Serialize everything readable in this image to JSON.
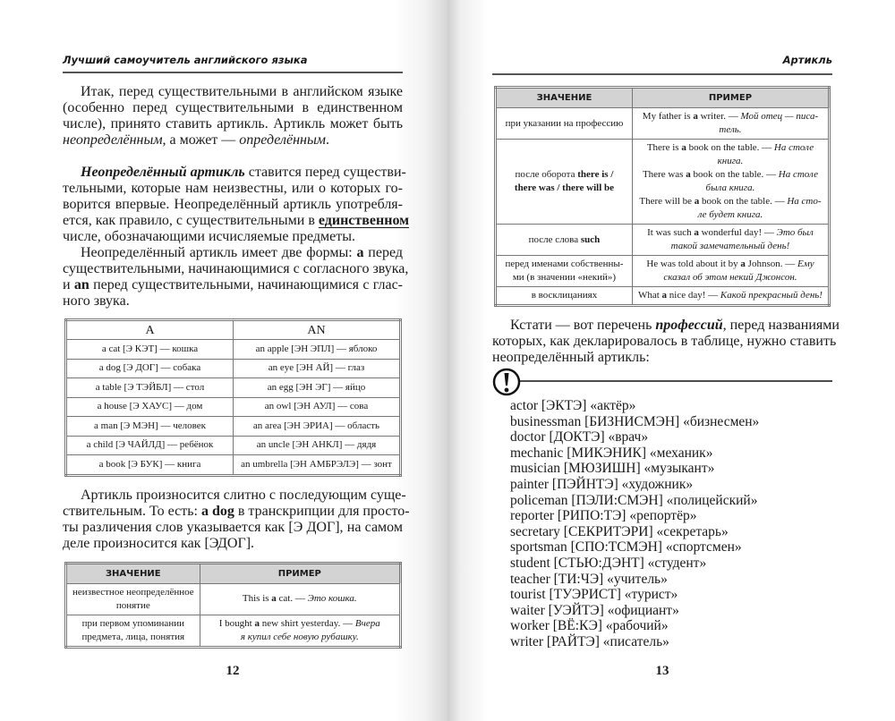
{
  "left": {
    "running_head": "Лучший самоучитель английского языка",
    "intro": [
      {
        "indent": true,
        "segs": [
          {
            "t": "Итак, перед существительными в английском языке"
          }
        ]
      },
      {
        "segs": [
          {
            "t": "(особенно перед существительными в единственном"
          }
        ]
      },
      {
        "segs": [
          {
            "t": "числе), принято ставить артикль. Артикль может быть"
          }
        ]
      },
      {
        "last": true,
        "segs": [
          {
            "t": "неопределённым",
            "f": "i"
          },
          {
            "t": ", а может — "
          },
          {
            "t": "определённым",
            "f": "i"
          },
          {
            "t": "."
          }
        ]
      },
      {
        "last": true,
        "segs": [
          {
            "t": ""
          }
        ]
      },
      {
        "indent": true,
        "segs": [
          {
            "t": "Неопределённый артикль",
            "f": "b i"
          },
          {
            "t": " ставится перед существи-"
          }
        ]
      },
      {
        "segs": [
          {
            "t": "тельными, которые нам неизвестны, или о которых го-"
          }
        ]
      },
      {
        "segs": [
          {
            "t": "ворится впервые. Неопределённый артикль употребля-"
          }
        ]
      },
      {
        "segs": [
          {
            "t": "ется, как правило, с существительными в "
          },
          {
            "t": "единственном",
            "f": "b u"
          }
        ]
      },
      {
        "last": true,
        "segs": [
          {
            "t": "числе, обозначающими исчисляемые предметы."
          }
        ]
      },
      {
        "indent": true,
        "segs": [
          {
            "t": "Неопределённый артикль имеет две формы: "
          },
          {
            "t": "a",
            "f": "b"
          },
          {
            "t": " перед"
          }
        ]
      },
      {
        "segs": [
          {
            "t": "существительными, начинающимися с согласного звука,"
          }
        ]
      },
      {
        "segs": [
          {
            "t": "и "
          },
          {
            "t": "an",
            "f": "b"
          },
          {
            "t": " перед существительными, начинающимися с глас-"
          }
        ]
      },
      {
        "last": true,
        "segs": [
          {
            "t": "ного звука."
          }
        ]
      }
    ],
    "forms_table": {
      "headers": [
        "A",
        "AN"
      ],
      "rows": [
        [
          "a cat [Э КЭТ] — кошка",
          "an apple [ЭН ЭПЛ] — яблоко"
        ],
        [
          "a dog [Э ДОГ] — собака",
          "an eye [ЭН АЙ] — глаз"
        ],
        [
          "a table [Э ТЭЙБЛ] — стол",
          "an egg [ЭН ЭГ] — яйцо"
        ],
        [
          "a house [Э ХАУС] — дом",
          "an owl [ЭН АУЛ] — сова"
        ],
        [
          "a man [Э МЭН] — человек",
          "an area [ЭН ЭРИА] — область"
        ],
        [
          "a child [Э ЧАЙЛД] — ребёнок",
          "an uncle [ЭН АНКЛ] — дядя"
        ],
        [
          "a book [Э БУК] — книга",
          "an umbrella [ЭН АМБРЭЛЭ] — зонт"
        ]
      ]
    },
    "pronounce": [
      {
        "indent": true,
        "segs": [
          {
            "t": "Артикль произносится слитно с последующим суще-"
          }
        ]
      },
      {
        "segs": [
          {
            "t": "ствительным. То есть: "
          },
          {
            "t": "a dog",
            "f": "b"
          },
          {
            "t": " в транскрипции для просто-"
          }
        ]
      },
      {
        "segs": [
          {
            "t": "ты различения слов указывается как [Э ДОГ], на самом"
          }
        ]
      },
      {
        "last": true,
        "segs": [
          {
            "t": "деле произносится как [ЭДОГ]."
          }
        ]
      }
    ],
    "meaning_table": {
      "headers": [
        "ЗНАЧЕНИЕ",
        "ПРИМЕР"
      ],
      "rows": [
        [
          [
            [
              {
                "t": "неизвестное неопределённое"
              }
            ],
            [
              {
                "t": "понятие"
              }
            ]
          ],
          [
            [
              {
                "t": "This is "
              },
              {
                "t": "a",
                "f": "b"
              },
              {
                "t": " cat. — "
              },
              {
                "t": "Это кошка.",
                "f": "i"
              }
            ]
          ]
        ],
        [
          [
            [
              {
                "t": "при первом упоминании"
              }
            ],
            [
              {
                "t": "предмета, лица, понятия"
              }
            ]
          ],
          [
            [
              {
                "t": "I bought "
              },
              {
                "t": "a",
                "f": "b"
              },
              {
                "t": " new shirt yesterday. — "
              },
              {
                "t": "Вчера",
                "f": "i"
              }
            ],
            [
              {
                "t": "я купил себе новую рубашку.",
                "f": "i"
              }
            ]
          ]
        ]
      ]
    },
    "page_number": "12"
  },
  "right": {
    "running_head": "Артикль",
    "meaning_table": {
      "headers": [
        "ЗНАЧЕНИЕ",
        "ПРИМЕР"
      ],
      "rows": [
        [
          [
            [
              {
                "t": "при указании на профессию"
              }
            ]
          ],
          [
            [
              {
                "t": "My father is "
              },
              {
                "t": "a",
                "f": "b"
              },
              {
                "t": " writer. — "
              },
              {
                "t": "Мой отец — писа-",
                "f": "i"
              }
            ],
            [
              {
                "t": "тель.",
                "f": "i"
              }
            ]
          ]
        ],
        [
          [
            [
              {
                "t": "после оборота "
              },
              {
                "t": "there is /",
                "f": "b"
              }
            ],
            [
              {
                "t": "there was / there will be",
                "f": "b"
              }
            ]
          ],
          [
            [
              {
                "t": "There is "
              },
              {
                "t": "a",
                "f": "b"
              },
              {
                "t": " book on the table. — "
              },
              {
                "t": "На столе",
                "f": "i"
              }
            ],
            [
              {
                "t": "книга.",
                "f": "i"
              }
            ],
            [
              {
                "t": "There was "
              },
              {
                "t": "a",
                "f": "b"
              },
              {
                "t": " book on the table. — "
              },
              {
                "t": "На столе",
                "f": "i"
              }
            ],
            [
              {
                "t": "была книга.",
                "f": "i"
              }
            ],
            [
              {
                "t": "There will be "
              },
              {
                "t": "a",
                "f": "b"
              },
              {
                "t": " book on the table. — "
              },
              {
                "t": "На сто-",
                "f": "i"
              }
            ],
            [
              {
                "t": "ле будет книга.",
                "f": "i"
              }
            ]
          ]
        ],
        [
          [
            [
              {
                "t": "после слова "
              },
              {
                "t": "such",
                "f": "b"
              }
            ]
          ],
          [
            [
              {
                "t": "It was such "
              },
              {
                "t": "a",
                "f": "b"
              },
              {
                "t": " wonderful day! — "
              },
              {
                "t": "Это был",
                "f": "i"
              }
            ],
            [
              {
                "t": "такой замечательный день!",
                "f": "i"
              }
            ]
          ]
        ],
        [
          [
            [
              {
                "t": "перед именами собственны-"
              }
            ],
            [
              {
                "t": "ми (в значении «некий»)"
              }
            ]
          ],
          [
            [
              {
                "t": "He was told about it by "
              },
              {
                "t": "a",
                "f": "b"
              },
              {
                "t": " Johnson. — "
              },
              {
                "t": "Ему",
                "f": "i"
              }
            ],
            [
              {
                "t": "сказал об этом некий Джонсон.",
                "f": "i"
              }
            ]
          ]
        ],
        [
          [
            [
              {
                "t": "в восклицаниях"
              }
            ]
          ],
          [
            [
              {
                "t": "What "
              },
              {
                "t": "a",
                "f": "b"
              },
              {
                "t": " nice day! — "
              },
              {
                "t": "Какой прекрасный день!",
                "f": "i"
              }
            ]
          ]
        ]
      ]
    },
    "note": [
      {
        "indent": true,
        "segs": [
          {
            "t": "Кстати — вот перечень "
          },
          {
            "t": "профессий",
            "f": "b i"
          },
          {
            "t": ", перед названиями"
          }
        ]
      },
      {
        "segs": [
          {
            "t": "которых, как декларировалось в таблице, нужно ставить"
          }
        ]
      },
      {
        "last": true,
        "segs": [
          {
            "t": "неопределённый артикль:"
          }
        ]
      }
    ],
    "attention_icon": "exclamation-circle-icon",
    "professions": [
      "actor [ЭКТЭ] «актёр»",
      "businessman [БИЗНИСМЭН] «бизнесмен»",
      "doctor [ДОКТЭ] «врач»",
      "mechanic [МИКЭНИК] «механик»",
      "musician [МЮЗИШН] «музыкант»",
      "painter [ПЭЙНТЭ] «художник»",
      "policeman [ПЭЛИ:СМЭН] «полицейский»",
      "reporter [РИПО:ТЭ] «репортёр»",
      "secretary [СЕКРИТЭРИ] «секретарь»",
      "sportsman [СПО:ТСМЭН] «спортсмен»",
      "student [СТЬЮ:ДЭНТ] «студент»",
      "teacher [ТИ:ЧЭ] «учитель»",
      "tourist [ТУЭРИСТ] «турист»",
      "waiter [УЭЙТЭ] «официант»",
      "worker [ВЁ:КЭ] «рабочий»",
      "writer [РАЙТЭ] «писатель»"
    ],
    "page_number": "13"
  }
}
